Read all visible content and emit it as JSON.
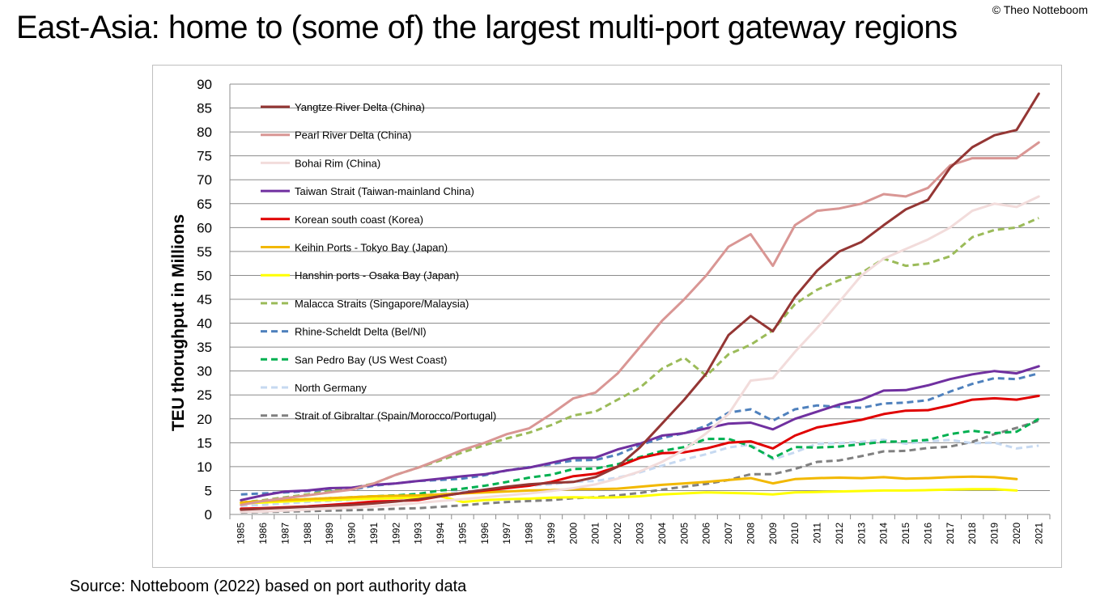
{
  "title": "East-Asia: home to (some of) the largest multi-port gateway regions",
  "copyright": "© Theo Notteboom",
  "source": "Source: Notteboom (2022) based on port authority data",
  "chart_data": {
    "type": "line",
    "title": "East-Asia: home to (some of) the largest multi-port gateway regions",
    "xlabel": "",
    "ylabel": "TEU thorughput in Millions",
    "ylim": [
      0,
      90
    ],
    "ytick_step": 5,
    "grid": true,
    "legend": "top-left",
    "categories": [
      "1985",
      "1986",
      "1987",
      "1988",
      "1989",
      "1990",
      "1991",
      "1992",
      "1993",
      "1994",
      "1995",
      "1996",
      "1997",
      "1998",
      "1999",
      "2000",
      "2001",
      "2002",
      "2003",
      "2004",
      "2005",
      "2006",
      "2007",
      "2008",
      "2009",
      "2010",
      "2011",
      "2012",
      "2013",
      "2014",
      "2015",
      "2016",
      "2017",
      "2018",
      "2019",
      "2020",
      "2021"
    ],
    "series": [
      {
        "name": "Yangtze River Delta (China)",
        "color": "#943634",
        "dash": false,
        "values": [
          1.0,
          1.2,
          1.4,
          1.6,
          1.8,
          2.0,
          2.3,
          2.7,
          3.2,
          3.8,
          4.5,
          5.2,
          5.8,
          6.3,
          6.6,
          6.8,
          7.8,
          10.0,
          14.0,
          19.0,
          24.0,
          29.5,
          37.5,
          41.5,
          38.3,
          45.5,
          51.0,
          55.0,
          57.0,
          60.5,
          63.8,
          65.8,
          72.5,
          76.8,
          79.3,
          80.4,
          88.0
        ]
      },
      {
        "name": "Pearl River Delta (China)",
        "color": "#d99694",
        "dash": false,
        "values": [
          2.0,
          2.8,
          3.4,
          4.0,
          4.6,
          5.2,
          6.5,
          8.3,
          9.8,
          11.6,
          13.5,
          15.0,
          16.8,
          18.0,
          21.0,
          24.3,
          25.5,
          29.5,
          35.0,
          40.5,
          45.0,
          50.0,
          56.0,
          58.6,
          52.0,
          60.5,
          63.5,
          64.0,
          65.0,
          67.0,
          66.5,
          68.3,
          73.0,
          74.5,
          74.5,
          74.5,
          77.8
        ]
      },
      {
        "name": "Bohai Rim (China)",
        "color": "#f2dcdb",
        "dash": false,
        "values": [
          0.5,
          0.6,
          0.8,
          1.0,
          1.2,
          1.4,
          1.7,
          2.0,
          2.4,
          2.8,
          3.2,
          3.6,
          4.0,
          4.4,
          4.9,
          5.5,
          6.3,
          7.5,
          9.0,
          11.0,
          13.5,
          17.0,
          21.0,
          28.0,
          28.5,
          34.0,
          39.0,
          44.5,
          50.0,
          53.5,
          55.5,
          57.5,
          60.0,
          63.5,
          65.0,
          64.3,
          66.5
        ]
      },
      {
        "name": "Taiwan Strait (Taiwan-mainland China)",
        "color": "#7030a0",
        "dash": false,
        "values": [
          3.0,
          4.0,
          4.8,
          5.0,
          5.5,
          5.6,
          6.2,
          6.5,
          7.0,
          7.5,
          8.0,
          8.4,
          9.2,
          9.8,
          10.8,
          11.8,
          11.9,
          13.6,
          14.8,
          16.5,
          17.0,
          18.0,
          19.0,
          19.2,
          17.8,
          20.0,
          21.5,
          23.0,
          24.0,
          25.9,
          26.0,
          27.0,
          28.3,
          29.3,
          30.0,
          29.5,
          31.0
        ]
      },
      {
        "name": "Korean south coast (Korea)",
        "color": "#e00000",
        "dash": false,
        "values": [
          1.2,
          1.3,
          1.5,
          1.7,
          2.0,
          2.3,
          2.7,
          2.8,
          3.0,
          3.8,
          4.5,
          5.0,
          5.5,
          6.0,
          6.8,
          8.0,
          8.5,
          10.0,
          11.8,
          12.8,
          13.0,
          13.8,
          15.0,
          15.3,
          13.8,
          16.5,
          18.2,
          19.0,
          19.8,
          21.0,
          21.7,
          21.8,
          22.8,
          24.0,
          24.3,
          24.0,
          24.8
        ]
      },
      {
        "name": "Keihin Ports - Tokyo Bay (Japan)",
        "color": "#f2b800",
        "dash": false,
        "values": [
          2.5,
          2.8,
          3.0,
          3.2,
          3.4,
          3.6,
          3.8,
          3.9,
          4.0,
          4.2,
          4.4,
          4.6,
          4.8,
          5.0,
          5.1,
          5.3,
          5.3,
          5.4,
          5.8,
          6.2,
          6.5,
          6.8,
          7.2,
          7.6,
          6.5,
          7.4,
          7.6,
          7.7,
          7.6,
          7.8,
          7.5,
          7.6,
          7.8,
          7.9,
          7.8,
          7.4,
          null
        ]
      },
      {
        "name": "Hanshin ports - Osaka Bay (Japan)",
        "color": "#ffff00",
        "dash": false,
        "values": [
          2.3,
          2.5,
          2.7,
          2.9,
          3.0,
          3.2,
          3.3,
          3.4,
          3.6,
          3.8,
          2.6,
          3.0,
          3.2,
          3.3,
          3.5,
          3.6,
          3.5,
          3.6,
          3.8,
          4.2,
          4.4,
          4.6,
          4.5,
          4.4,
          4.2,
          4.6,
          4.7,
          4.8,
          4.9,
          5.0,
          5.0,
          5.1,
          5.2,
          5.3,
          5.3,
          5.0,
          null
        ]
      },
      {
        "name": "Malacca Straits (Singapore/Malaysia)",
        "color": "#9bbb59",
        "dash": true,
        "values": [
          2.5,
          3.0,
          3.6,
          4.2,
          4.9,
          5.5,
          6.5,
          8.3,
          9.8,
          11.3,
          13.0,
          14.5,
          15.9,
          17.1,
          18.7,
          20.7,
          21.5,
          24.0,
          26.5,
          30.5,
          32.8,
          29.0,
          33.5,
          35.5,
          38.5,
          44.0,
          47.0,
          49.0,
          50.5,
          53.5,
          52.0,
          52.5,
          54.0,
          58.0,
          59.5,
          60.0,
          62.0
        ]
      },
      {
        "name": "Rhine-Scheldt Delta (Bel/Nl)",
        "color": "#4f81bd",
        "dash": true,
        "values": [
          4.2,
          4.4,
          4.6,
          4.9,
          5.0,
          5.2,
          6.0,
          6.5,
          7.0,
          7.2,
          7.5,
          8.2,
          9.2,
          9.9,
          10.5,
          11.3,
          11.4,
          12.5,
          14.5,
          16.0,
          17.0,
          18.5,
          21.3,
          22.0,
          19.6,
          22.0,
          22.8,
          22.5,
          22.3,
          23.2,
          23.4,
          23.9,
          25.7,
          27.3,
          28.5,
          28.3,
          29.5
        ]
      },
      {
        "name": "San Pedro Bay (US West Coast)",
        "color": "#00b050",
        "dash": true,
        "values": [
          2.3,
          2.6,
          3.0,
          3.2,
          3.4,
          3.6,
          3.8,
          4.0,
          4.3,
          5.0,
          5.4,
          6.0,
          6.8,
          7.7,
          8.3,
          9.5,
          9.6,
          10.5,
          12.0,
          13.3,
          14.1,
          15.8,
          15.8,
          14.3,
          11.8,
          14.1,
          14.0,
          14.2,
          14.7,
          15.2,
          15.3,
          15.6,
          16.8,
          17.5,
          17.0,
          17.3,
          20.0
        ]
      },
      {
        "name": "North Germany",
        "color": "#c6d9f1",
        "dash": true,
        "values": [
          1.8,
          2.0,
          2.3,
          2.6,
          2.8,
          3.0,
          3.4,
          3.6,
          3.8,
          4.3,
          4.8,
          5.2,
          5.6,
          6.0,
          6.3,
          6.8,
          7.0,
          7.7,
          8.8,
          10.2,
          11.5,
          12.6,
          14.0,
          14.6,
          11.5,
          13.0,
          14.8,
          14.9,
          15.2,
          15.6,
          14.8,
          15.3,
          15.6,
          14.9,
          15.0,
          13.8,
          14.4
        ]
      },
      {
        "name": "Strait of Gibraltar (Spain/Morocco/Portugal)",
        "color": "#808080",
        "dash": true,
        "values": [
          0.4,
          0.5,
          0.6,
          0.7,
          0.8,
          0.9,
          1.0,
          1.2,
          1.3,
          1.6,
          1.9,
          2.3,
          2.6,
          2.8,
          3.0,
          3.4,
          3.6,
          4.0,
          4.5,
          5.2,
          5.8,
          6.4,
          7.2,
          8.4,
          8.4,
          9.5,
          11.0,
          11.3,
          12.2,
          13.2,
          13.3,
          13.9,
          14.2,
          15.2,
          16.8,
          18.1,
          19.6
        ]
      }
    ]
  }
}
